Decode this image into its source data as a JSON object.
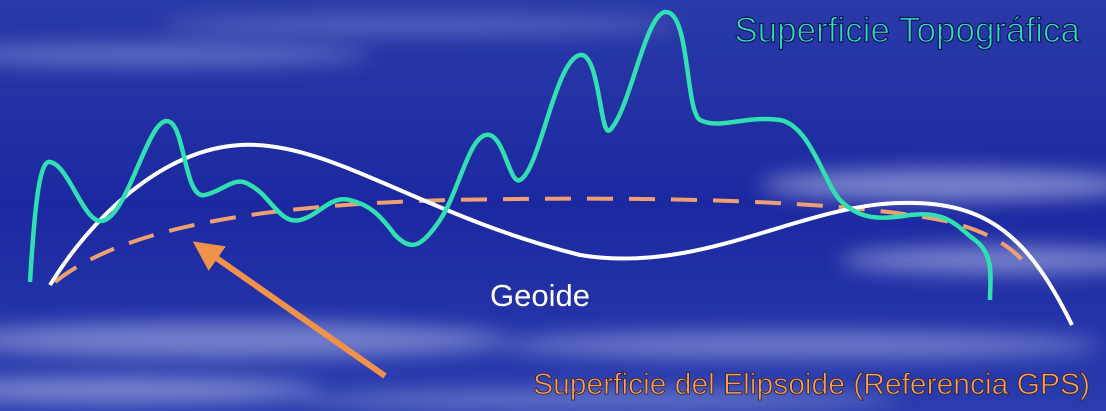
{
  "labels": {
    "topography": "Superficie Topográfica",
    "geoid": "Geoide",
    "ellipsoid": "Superficie del Elipsoide (Referencia GPS)"
  }
}
